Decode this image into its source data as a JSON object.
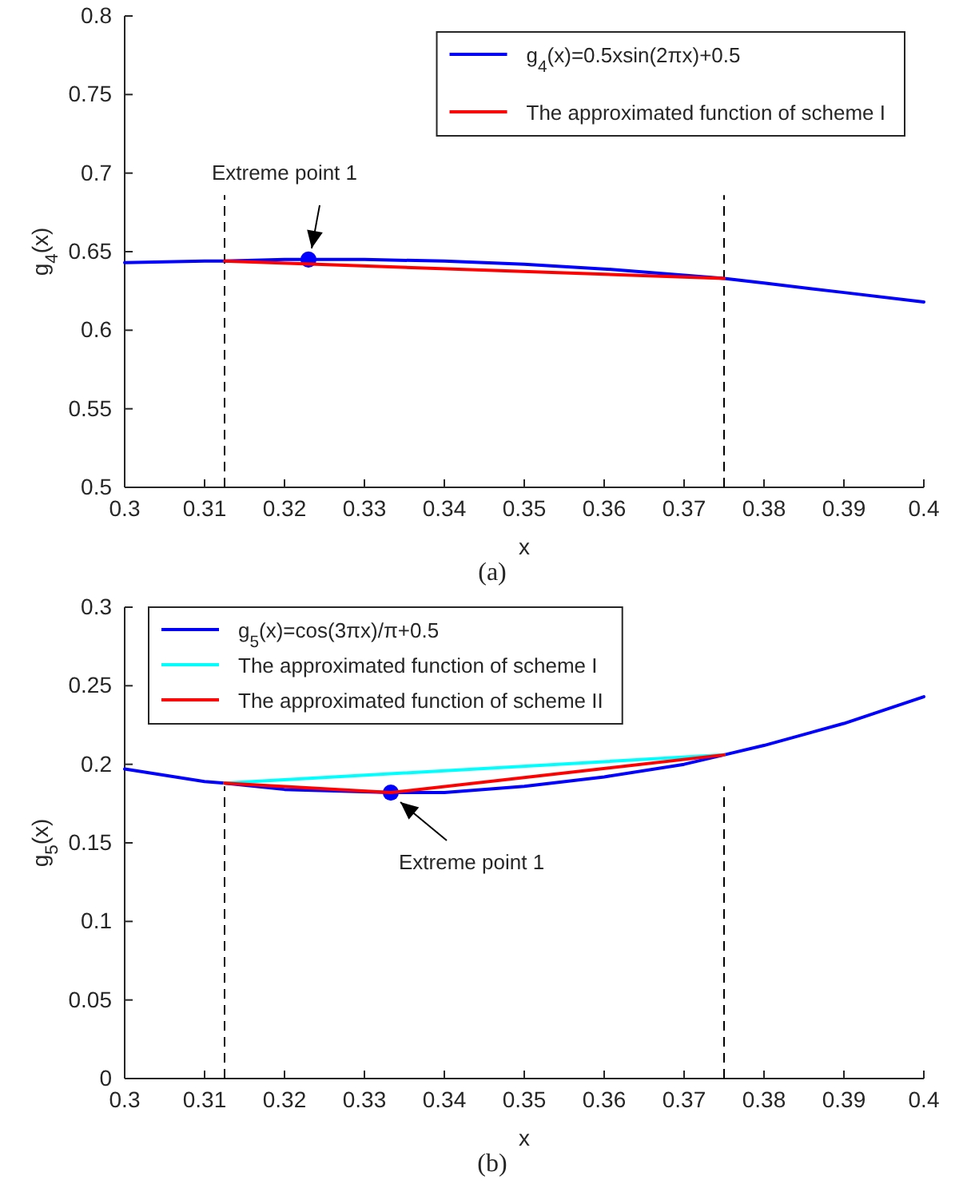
{
  "chart_data": [
    {
      "type": "line",
      "xlabel": "x",
      "ylabel": "g$_{4}$(x)",
      "xlim": [
        0.3,
        0.4
      ],
      "ylim": [
        0.5,
        0.8
      ],
      "xticks": [
        0.3,
        0.31,
        0.32,
        0.33,
        0.34,
        0.35,
        0.36,
        0.37,
        0.38,
        0.39,
        0.4
      ],
      "yticks": [
        0.5,
        0.55,
        0.6,
        0.65,
        0.7,
        0.75,
        0.8
      ],
      "grid": false,
      "legend": "top right",
      "marker": "none",
      "line_style": "solid",
      "series": [
        {
          "name": "g$_{4}$(x)=0.5xsin(2πx)+0.5",
          "color": "#0000ff",
          "x": [
            0.3,
            0.31,
            0.3125,
            0.32,
            0.323,
            0.33,
            0.34,
            0.35,
            0.36,
            0.37,
            0.375,
            0.38,
            0.39,
            0.4
          ],
          "values": [
            0.643,
            0.644,
            0.644,
            0.645,
            0.645,
            0.645,
            0.644,
            0.642,
            0.639,
            0.635,
            0.633,
            0.63,
            0.624,
            0.618
          ]
        },
        {
          "name": "The approximated function of scheme I",
          "color": "#ff0000",
          "x": [
            0.3125,
            0.375
          ],
          "values": [
            0.644,
            0.633
          ]
        },
        {
          "type": "scatter",
          "marker": "circle",
          "color": "#0000ff",
          "x": [
            0.323
          ],
          "values": [
            0.645
          ]
        }
      ],
      "ref_lines": [
        {
          "axis": "x",
          "value": 0.3125,
          "color": "#000000",
          "line_style": "dashed"
        },
        {
          "axis": "x",
          "value": 0.375,
          "color": "#000000",
          "line_style": "dashed"
        }
      ],
      "annotations": [
        {
          "text": "Extreme point 1",
          "x": 0.323,
          "y": 0.645
        },
        "(a)"
      ]
    },
    {
      "type": "line",
      "xlabel": "x",
      "ylabel": "g$_{5}$(x)",
      "xlim": [
        0.3,
        0.4
      ],
      "ylim": [
        0,
        0.3
      ],
      "xticks": [
        0.3,
        0.31,
        0.32,
        0.33,
        0.34,
        0.35,
        0.36,
        0.37,
        0.38,
        0.39,
        0.4
      ],
      "yticks": [
        0,
        0.05,
        0.1,
        0.15,
        0.2,
        0.25,
        0.3
      ],
      "grid": false,
      "legend": "top left",
      "marker": "none",
      "line_style": "solid",
      "series": [
        {
          "name": "g$_{5}$(x)=cos(3πx)/π+0.5",
          "color": "#0000ff",
          "x": [
            0.3,
            0.31,
            0.3125,
            0.32,
            0.3333,
            0.34,
            0.35,
            0.36,
            0.37,
            0.375,
            0.38,
            0.39,
            0.4
          ],
          "values": [
            0.197,
            0.189,
            0.188,
            0.184,
            0.182,
            0.182,
            0.186,
            0.192,
            0.2,
            0.206,
            0.212,
            0.226,
            0.243
          ]
        },
        {
          "name": "The approximated function of scheme I",
          "color": "#00ffff",
          "x": [
            0.3125,
            0.375
          ],
          "values": [
            0.188,
            0.206
          ]
        },
        {
          "name": "The approximated function of scheme II",
          "color": "#ff0000",
          "x": [
            0.3125,
            0.3333,
            0.375
          ],
          "values": [
            0.188,
            0.182,
            0.206
          ]
        },
        {
          "type": "scatter",
          "marker": "circle",
          "color": "#0000ff",
          "x": [
            0.3333
          ],
          "values": [
            0.182
          ]
        }
      ],
      "ref_lines": [
        {
          "axis": "x",
          "value": 0.3125,
          "color": "#000000",
          "line_style": "dashed"
        },
        {
          "axis": "x",
          "value": 0.375,
          "color": "#000000",
          "line_style": "dashed"
        }
      ],
      "annotations": [
        {
          "text": "Extreme point 1",
          "x": 0.3333,
          "y": 0.182
        },
        "(b)"
      ]
    }
  ]
}
